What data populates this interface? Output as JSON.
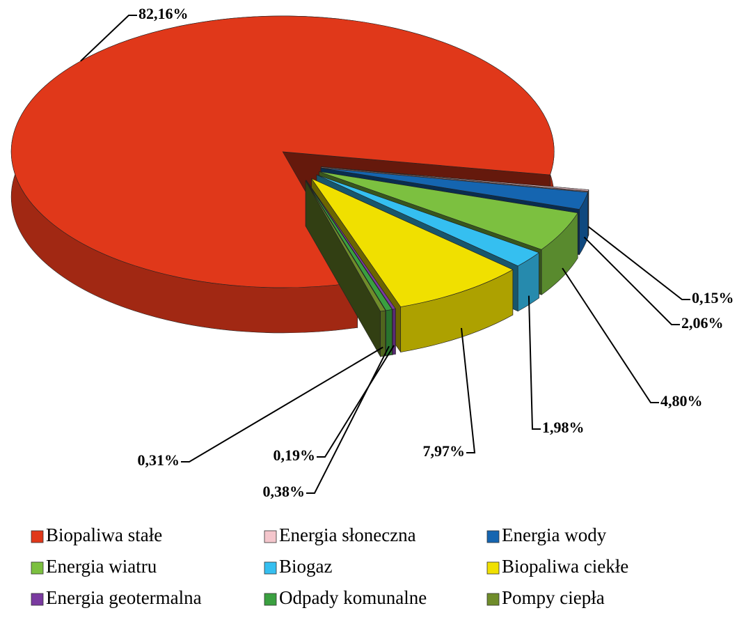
{
  "chart_data": {
    "type": "pie",
    "categories": [
      "Biopaliwa stałe",
      "Energia słoneczna",
      "Energia wody",
      "Energia wiatru",
      "Biogaz",
      "Biopaliwa ciekłe",
      "Energia geotermalna",
      "Odpady komunalne",
      "Pompy ciepła"
    ],
    "values": [
      82.16,
      0.15,
      2.06,
      4.8,
      1.98,
      7.97,
      0.19,
      0.38,
      0.31
    ],
    "value_labels": [
      "82,16%",
      "0,15%",
      "2,06%",
      "4,80%",
      "1,98%",
      "7,97%",
      "0,19%",
      "0,38%",
      "0,31%"
    ],
    "colors": [
      "#e0381a",
      "#f4c6cc",
      "#1565b0",
      "#7cc040",
      "#35bff0",
      "#f0e000",
      "#7a3aa0",
      "#3aa040",
      "#6f8c2a"
    ],
    "legend": "bottom"
  }
}
